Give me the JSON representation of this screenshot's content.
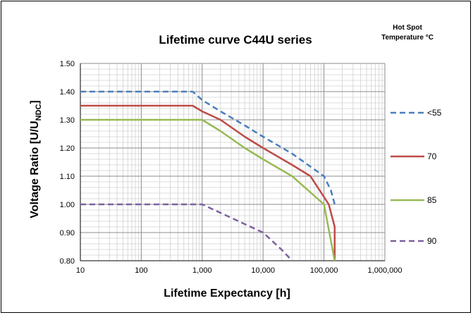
{
  "chart_data": {
    "type": "line",
    "title": "Lifetime curve C44U series",
    "xlabel": "Lifetime Expectancy  [h]",
    "ylabel_main": "Voltage Ratio [U/U",
    "ylabel_sub": "NDC",
    "ylabel_end": "]",
    "x_scale": "log",
    "xlim": [
      10,
      1000000
    ],
    "ylim": [
      0.8,
      1.5
    ],
    "x_ticks": [
      {
        "value": 10,
        "label": "10"
      },
      {
        "value": 100,
        "label": "100"
      },
      {
        "value": 1000,
        "label": "1,000"
      },
      {
        "value": 10000,
        "label": "10,000"
      },
      {
        "value": 100000,
        "label": "100,000"
      },
      {
        "value": 1000000,
        "label": "1,000,000"
      }
    ],
    "y_ticks": [
      {
        "value": 0.8,
        "label": "0.80"
      },
      {
        "value": 0.9,
        "label": "0.90"
      },
      {
        "value": 1.0,
        "label": "1.00"
      },
      {
        "value": 1.1,
        "label": "1.10"
      },
      {
        "value": 1.2,
        "label": "1.20"
      },
      {
        "value": 1.3,
        "label": "1.30"
      },
      {
        "value": 1.4,
        "label": "1.40"
      },
      {
        "value": 1.5,
        "label": "1.50"
      }
    ],
    "grid": true,
    "legend_title_line1": "Hot Spot",
    "legend_title_line2": "Temperature °C",
    "legend_position": "right",
    "series": [
      {
        "name": "<55",
        "color": "#4a7ebb",
        "dash": "dashed",
        "x": [
          10,
          700,
          1000,
          2000,
          5000,
          10000,
          30000,
          100000,
          130000,
          150000
        ],
        "y": [
          1.4,
          1.4,
          1.37,
          1.33,
          1.28,
          1.24,
          1.18,
          1.1,
          1.05,
          1.0
        ]
      },
      {
        "name": "70",
        "color": "#be4b48",
        "dash": "solid",
        "x": [
          10,
          700,
          1000,
          2000,
          5000,
          10000,
          30000,
          60000,
          120000,
          150000,
          150000
        ],
        "y": [
          1.35,
          1.35,
          1.33,
          1.3,
          1.24,
          1.2,
          1.14,
          1.1,
          1.0,
          0.92,
          0.8
        ]
      },
      {
        "name": "85",
        "color": "#98b954",
        "dash": "solid",
        "x": [
          10,
          1000,
          2000,
          5000,
          10000,
          30000,
          100000,
          150000
        ],
        "y": [
          1.3,
          1.3,
          1.26,
          1.2,
          1.16,
          1.1,
          1.0,
          0.8
        ]
      },
      {
        "name": "90",
        "color": "#7d60a0",
        "dash": "dashed",
        "x": [
          10,
          1000,
          2000,
          5000,
          10000,
          20000,
          30000
        ],
        "y": [
          1.0,
          1.0,
          0.97,
          0.93,
          0.9,
          0.84,
          0.8
        ]
      }
    ]
  }
}
